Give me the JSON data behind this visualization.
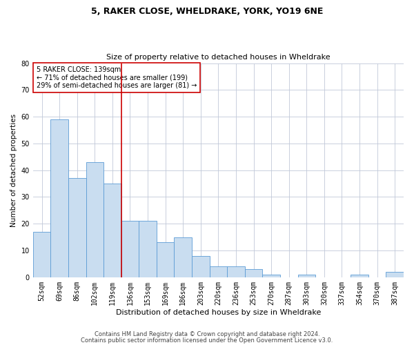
{
  "title": "5, RAKER CLOSE, WHELDRAKE, YORK, YO19 6NE",
  "subtitle": "Size of property relative to detached houses in Wheldrake",
  "xlabel": "Distribution of detached houses by size in Wheldrake",
  "ylabel": "Number of detached properties",
  "bar_color": "#c9ddf0",
  "bar_edge_color": "#5b9bd5",
  "categories": [
    "52sqm",
    "69sqm",
    "86sqm",
    "102sqm",
    "119sqm",
    "136sqm",
    "153sqm",
    "169sqm",
    "186sqm",
    "203sqm",
    "220sqm",
    "236sqm",
    "253sqm",
    "270sqm",
    "287sqm",
    "303sqm",
    "320sqm",
    "337sqm",
    "354sqm",
    "370sqm",
    "387sqm"
  ],
  "values": [
    17,
    59,
    37,
    43,
    35,
    21,
    21,
    13,
    15,
    8,
    4,
    4,
    3,
    1,
    0,
    1,
    0,
    0,
    1,
    0,
    2
  ],
  "ylim": [
    0,
    80
  ],
  "yticks": [
    0,
    10,
    20,
    30,
    40,
    50,
    60,
    70,
    80
  ],
  "vline_x": 4.5,
  "vline_color": "#cc0000",
  "annotation_text": "5 RAKER CLOSE: 139sqm\n← 71% of detached houses are smaller (199)\n29% of semi-detached houses are larger (81) →",
  "annotation_box_color": "#ffffff",
  "annotation_box_edge": "#cc0000",
  "footer1": "Contains HM Land Registry data © Crown copyright and database right 2024.",
  "footer2": "Contains public sector information licensed under the Open Government Licence v3.0.",
  "background_color": "#ffffff",
  "grid_color": "#c0c8d8",
  "title_fontsize": 9,
  "subtitle_fontsize": 8,
  "ylabel_fontsize": 7.5,
  "xlabel_fontsize": 8,
  "tick_fontsize": 7,
  "annotation_fontsize": 7,
  "footer_fontsize": 6
}
